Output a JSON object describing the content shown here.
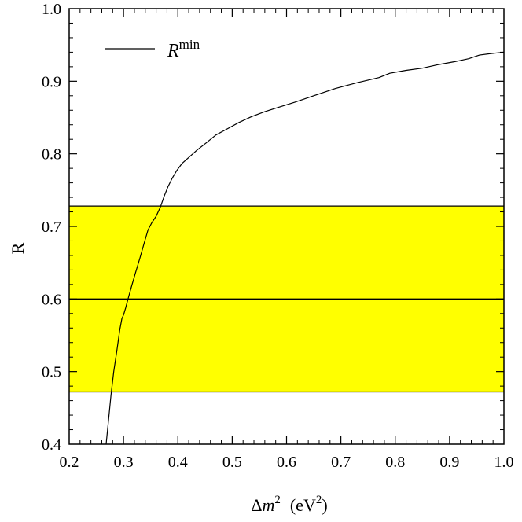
{
  "chart_data": {
    "type": "line",
    "title": "",
    "xlabel": {
      "prefix": "Δ",
      "var": "m",
      "sup": "2",
      "unit_open": "(eV",
      "unit_sup": "2",
      "unit_close": ")"
    },
    "ylabel": "R",
    "xlim": [
      0.2,
      1.0
    ],
    "ylim": [
      0.4,
      1.0
    ],
    "xticks": [
      "0.2",
      "0.3",
      "0.4",
      "0.5",
      "0.6",
      "0.7",
      "0.8",
      "0.9",
      "1.0"
    ],
    "yticks": [
      "0.4",
      "0.5",
      "0.6",
      "0.7",
      "0.8",
      "0.9",
      "1.0"
    ],
    "grid": false,
    "legend": {
      "position": "top-left",
      "label_main": "R",
      "label_sup": "min"
    },
    "band": {
      "color": "#ffff00",
      "lower": 0.472,
      "central": 0.6,
      "upper": 0.728
    },
    "series": [
      {
        "label": "R^min",
        "color": "#000000",
        "x": [
          0.268,
          0.272,
          0.277,
          0.282,
          0.288,
          0.293,
          0.297,
          0.3,
          0.304,
          0.309,
          0.315,
          0.322,
          0.33,
          0.338,
          0.345,
          0.352,
          0.36,
          0.368,
          0.375,
          0.382,
          0.39,
          0.398,
          0.408,
          0.42,
          0.435,
          0.452,
          0.47,
          0.49,
          0.512,
          0.535,
          0.56,
          0.585,
          0.615,
          0.65,
          0.69,
          0.73,
          0.77,
          0.79,
          0.82,
          0.85,
          0.88,
          0.91,
          0.935,
          0.955,
          0.975,
          1.0
        ],
        "y": [
          0.4,
          0.43,
          0.468,
          0.5,
          0.53,
          0.557,
          0.573,
          0.578,
          0.588,
          0.602,
          0.618,
          0.636,
          0.656,
          0.677,
          0.695,
          0.705,
          0.714,
          0.727,
          0.742,
          0.755,
          0.767,
          0.777,
          0.787,
          0.795,
          0.805,
          0.815,
          0.826,
          0.834,
          0.843,
          0.851,
          0.858,
          0.864,
          0.871,
          0.88,
          0.89,
          0.898,
          0.905,
          0.911,
          0.915,
          0.918,
          0.923,
          0.927,
          0.931,
          0.936,
          0.938,
          0.94
        ]
      }
    ]
  }
}
